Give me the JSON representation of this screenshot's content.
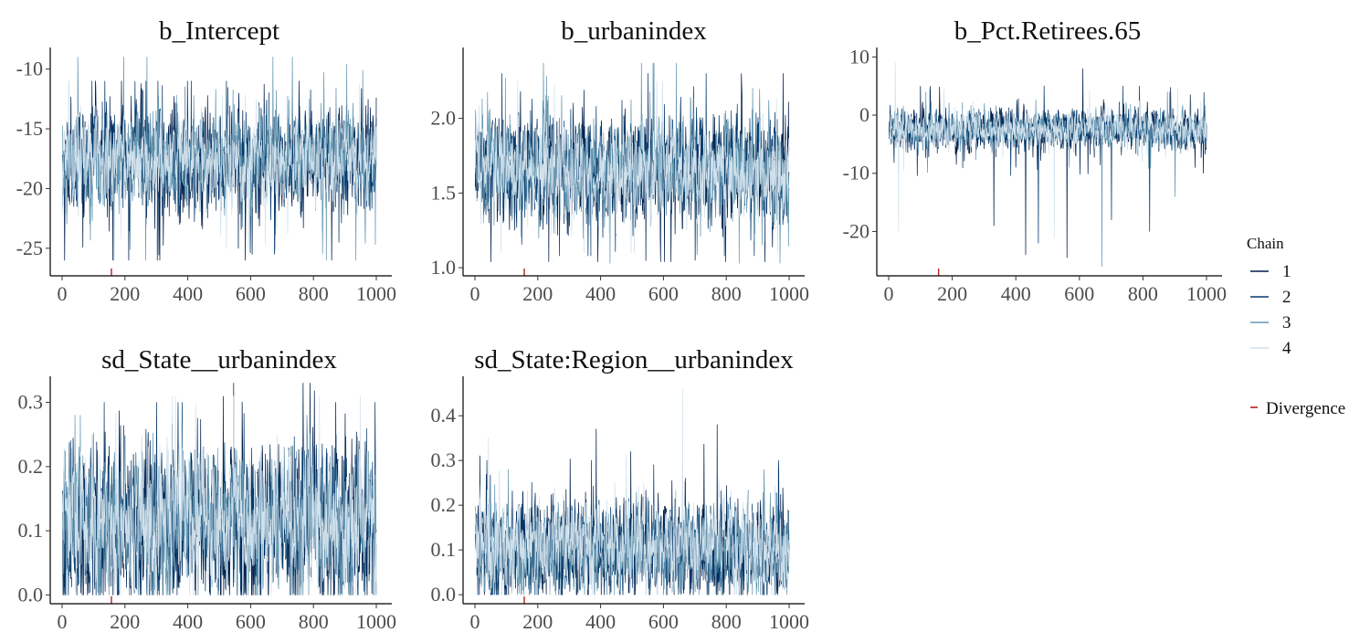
{
  "colors": {
    "chain1": "#011f4b",
    "chain2": "#03396c",
    "chain3": "#6497b1",
    "chain4": "#d1e1ec",
    "divergence": "#b22222",
    "axis": "#000000",
    "tick_text": "#4d4d4d"
  },
  "legend": {
    "title": "Chain",
    "placement": "right",
    "entries": [
      "1",
      "2",
      "3",
      "4"
    ],
    "divergence_label": "Divergence"
  },
  "chart_data": [
    {
      "type": "line",
      "title": "b_Intercept",
      "xlabel": "",
      "ylabel": "",
      "xlim": [
        0,
        1000
      ],
      "x_ticks": [
        0,
        200,
        400,
        600,
        800,
        1000
      ],
      "x_tick_labels": [
        "0",
        "200",
        "400",
        "600",
        "800",
        "1000"
      ],
      "ylim": [
        -27,
        -8.5
      ],
      "y_ticks": [
        -25,
        -20,
        -15,
        -10
      ],
      "y_tick_labels": [
        "-25",
        "-20",
        "-15",
        "-10"
      ],
      "series": [
        {
          "chain": 1,
          "center": -17.7,
          "spread": 2.2,
          "min": -26,
          "max": -11,
          "spikes": [
            [
              160,
              -26
            ],
            [
              390,
              -11.5
            ],
            [
              560,
              -25
            ]
          ]
        },
        {
          "chain": 2,
          "center": -17.7,
          "spread": 2.0,
          "min": -25.5,
          "max": -11,
          "spikes": [
            [
              410,
              -11
            ],
            [
              880,
              -24.5
            ]
          ]
        },
        {
          "chain": 3,
          "center": -17.7,
          "spread": 2.0,
          "min": -26,
          "max": -9,
          "spikes": [
            [
              670,
              -9
            ],
            [
              840,
              -26
            ]
          ]
        },
        {
          "chain": 4,
          "center": -17.7,
          "spread": 1.8,
          "min": -25,
          "max": -11,
          "spikes": [
            [
              20,
              -11
            ],
            [
              300,
              -24
            ]
          ]
        }
      ],
      "divergences": [
        157
      ]
    },
    {
      "type": "line",
      "title": "b_urbanindex",
      "xlabel": "",
      "ylabel": "",
      "xlim": [
        0,
        1000
      ],
      "x_ticks": [
        0,
        200,
        400,
        600,
        800,
        1000
      ],
      "x_tick_labels": [
        "0",
        "200",
        "400",
        "600",
        "800",
        "1000"
      ],
      "ylim": [
        0.97,
        2.45
      ],
      "y_ticks": [
        1.0,
        1.5,
        2.0
      ],
      "y_tick_labels": [
        "1.0",
        "1.5",
        "2.0"
      ],
      "series": [
        {
          "chain": 1,
          "center": 1.66,
          "spread": 0.19,
          "min": 1.04,
          "max": 2.3,
          "spikes": [
            [
              700,
              1.05
            ],
            [
              980,
              2.3
            ]
          ]
        },
        {
          "chain": 2,
          "center": 1.66,
          "spread": 0.17,
          "min": 1.08,
          "max": 2.3,
          "spikes": [
            [
              550,
              2.3
            ]
          ]
        },
        {
          "chain": 3,
          "center": 1.66,
          "spread": 0.17,
          "min": 1.03,
          "max": 2.37,
          "spikes": [
            [
              640,
              2.37
            ],
            [
              840,
              1.03
            ]
          ]
        },
        {
          "chain": 4,
          "center": 1.66,
          "spread": 0.15,
          "min": 1.1,
          "max": 2.25,
          "spikes": []
        }
      ],
      "divergences": [
        157
      ]
    },
    {
      "type": "line",
      "title": "b_Pct.Retirees.65",
      "xlabel": "",
      "ylabel": "",
      "xlim": [
        0,
        1000
      ],
      "x_ticks": [
        0,
        200,
        400,
        600,
        800,
        1000
      ],
      "x_tick_labels": [
        "0",
        "200",
        "400",
        "600",
        "800",
        "1000"
      ],
      "ylim": [
        -27,
        11
      ],
      "y_ticks": [
        -20,
        -10,
        0,
        10
      ],
      "y_tick_labels": [
        "-20",
        "-10",
        "0",
        "10"
      ],
      "series": [
        {
          "chain": 1,
          "center": -2.5,
          "spread": 1.8,
          "min": -25,
          "max": 8,
          "spikes": [
            [
              430,
              -24
            ],
            [
              560,
              -24.5
            ],
            [
              610,
              8
            ],
            [
              330,
              -19
            ]
          ]
        },
        {
          "chain": 2,
          "center": -2.5,
          "spread": 1.6,
          "min": -24,
          "max": 5,
          "spikes": [
            [
              470,
              -22
            ],
            [
              700,
              -18
            ],
            [
              820,
              -20
            ]
          ]
        },
        {
          "chain": 3,
          "center": -2.5,
          "spread": 1.6,
          "min": -26,
          "max": 4,
          "spikes": [
            [
              670,
              -26
            ],
            [
              900,
              -14
            ]
          ]
        },
        {
          "chain": 4,
          "center": -2.5,
          "spread": 1.5,
          "min": -22,
          "max": 9,
          "spikes": [
            [
              20,
              9
            ],
            [
              30,
              -20
            ],
            [
              520,
              -21
            ]
          ]
        }
      ],
      "divergences": [
        157
      ]
    },
    {
      "type": "line",
      "title": "sd_State__urbanindex",
      "xlabel": "",
      "ylabel": "",
      "xlim": [
        0,
        1000
      ],
      "x_ticks": [
        0,
        200,
        400,
        600,
        800,
        1000
      ],
      "x_tick_labels": [
        "0",
        "200",
        "400",
        "600",
        "800",
        "1000"
      ],
      "ylim": [
        -0.008,
        0.335
      ],
      "y_ticks": [
        0.0,
        0.1,
        0.2,
        0.3
      ],
      "y_tick_labels": [
        "0.0",
        "0.1",
        "0.2",
        "0.3"
      ],
      "series": [
        {
          "chain": 1,
          "center": 0.11,
          "spread": 0.06,
          "min": 0.0,
          "max": 0.33,
          "spikes": [
            [
              545,
              0.33
            ],
            [
              870,
              0.3
            ]
          ]
        },
        {
          "chain": 2,
          "center": 0.11,
          "spread": 0.06,
          "min": 0.0,
          "max": 0.3,
          "spikes": [
            [
              300,
              0.3
            ]
          ]
        },
        {
          "chain": 3,
          "center": 0.11,
          "spread": 0.055,
          "min": 0.0,
          "max": 0.28,
          "spikes": []
        },
        {
          "chain": 4,
          "center": 0.12,
          "spread": 0.055,
          "min": 0.0,
          "max": 0.31,
          "spikes": [
            [
              360,
              0.31
            ]
          ]
        }
      ],
      "divergences": [
        157
      ]
    },
    {
      "type": "line",
      "title": "sd_State:Region__urbanindex",
      "xlabel": "",
      "ylabel": "",
      "xlim": [
        0,
        1000
      ],
      "x_ticks": [
        0,
        200,
        400,
        600,
        800,
        1000
      ],
      "x_tick_labels": [
        "0",
        "200",
        "400",
        "600",
        "800",
        "1000"
      ],
      "ylim": [
        -0.012,
        0.48
      ],
      "y_ticks": [
        0.0,
        0.1,
        0.2,
        0.3,
        0.4
      ],
      "y_tick_labels": [
        "0.0",
        "0.1",
        "0.2",
        "0.3",
        "0.4"
      ],
      "series": [
        {
          "chain": 1,
          "center": 0.1,
          "spread": 0.055,
          "min": 0.0,
          "max": 0.38,
          "spikes": [
            [
              385,
              0.37
            ],
            [
              770,
              0.38
            ]
          ]
        },
        {
          "chain": 2,
          "center": 0.1,
          "spread": 0.05,
          "min": 0.0,
          "max": 0.3,
          "spikes": [
            [
              370,
              0.3
            ]
          ]
        },
        {
          "chain": 3,
          "center": 0.1,
          "spread": 0.05,
          "min": 0.0,
          "max": 0.28,
          "spikes": []
        },
        {
          "chain": 4,
          "center": 0.11,
          "spread": 0.05,
          "min": 0.0,
          "max": 0.46,
          "spikes": [
            [
              660,
              0.46
            ]
          ]
        }
      ],
      "divergences": [
        157
      ]
    }
  ]
}
